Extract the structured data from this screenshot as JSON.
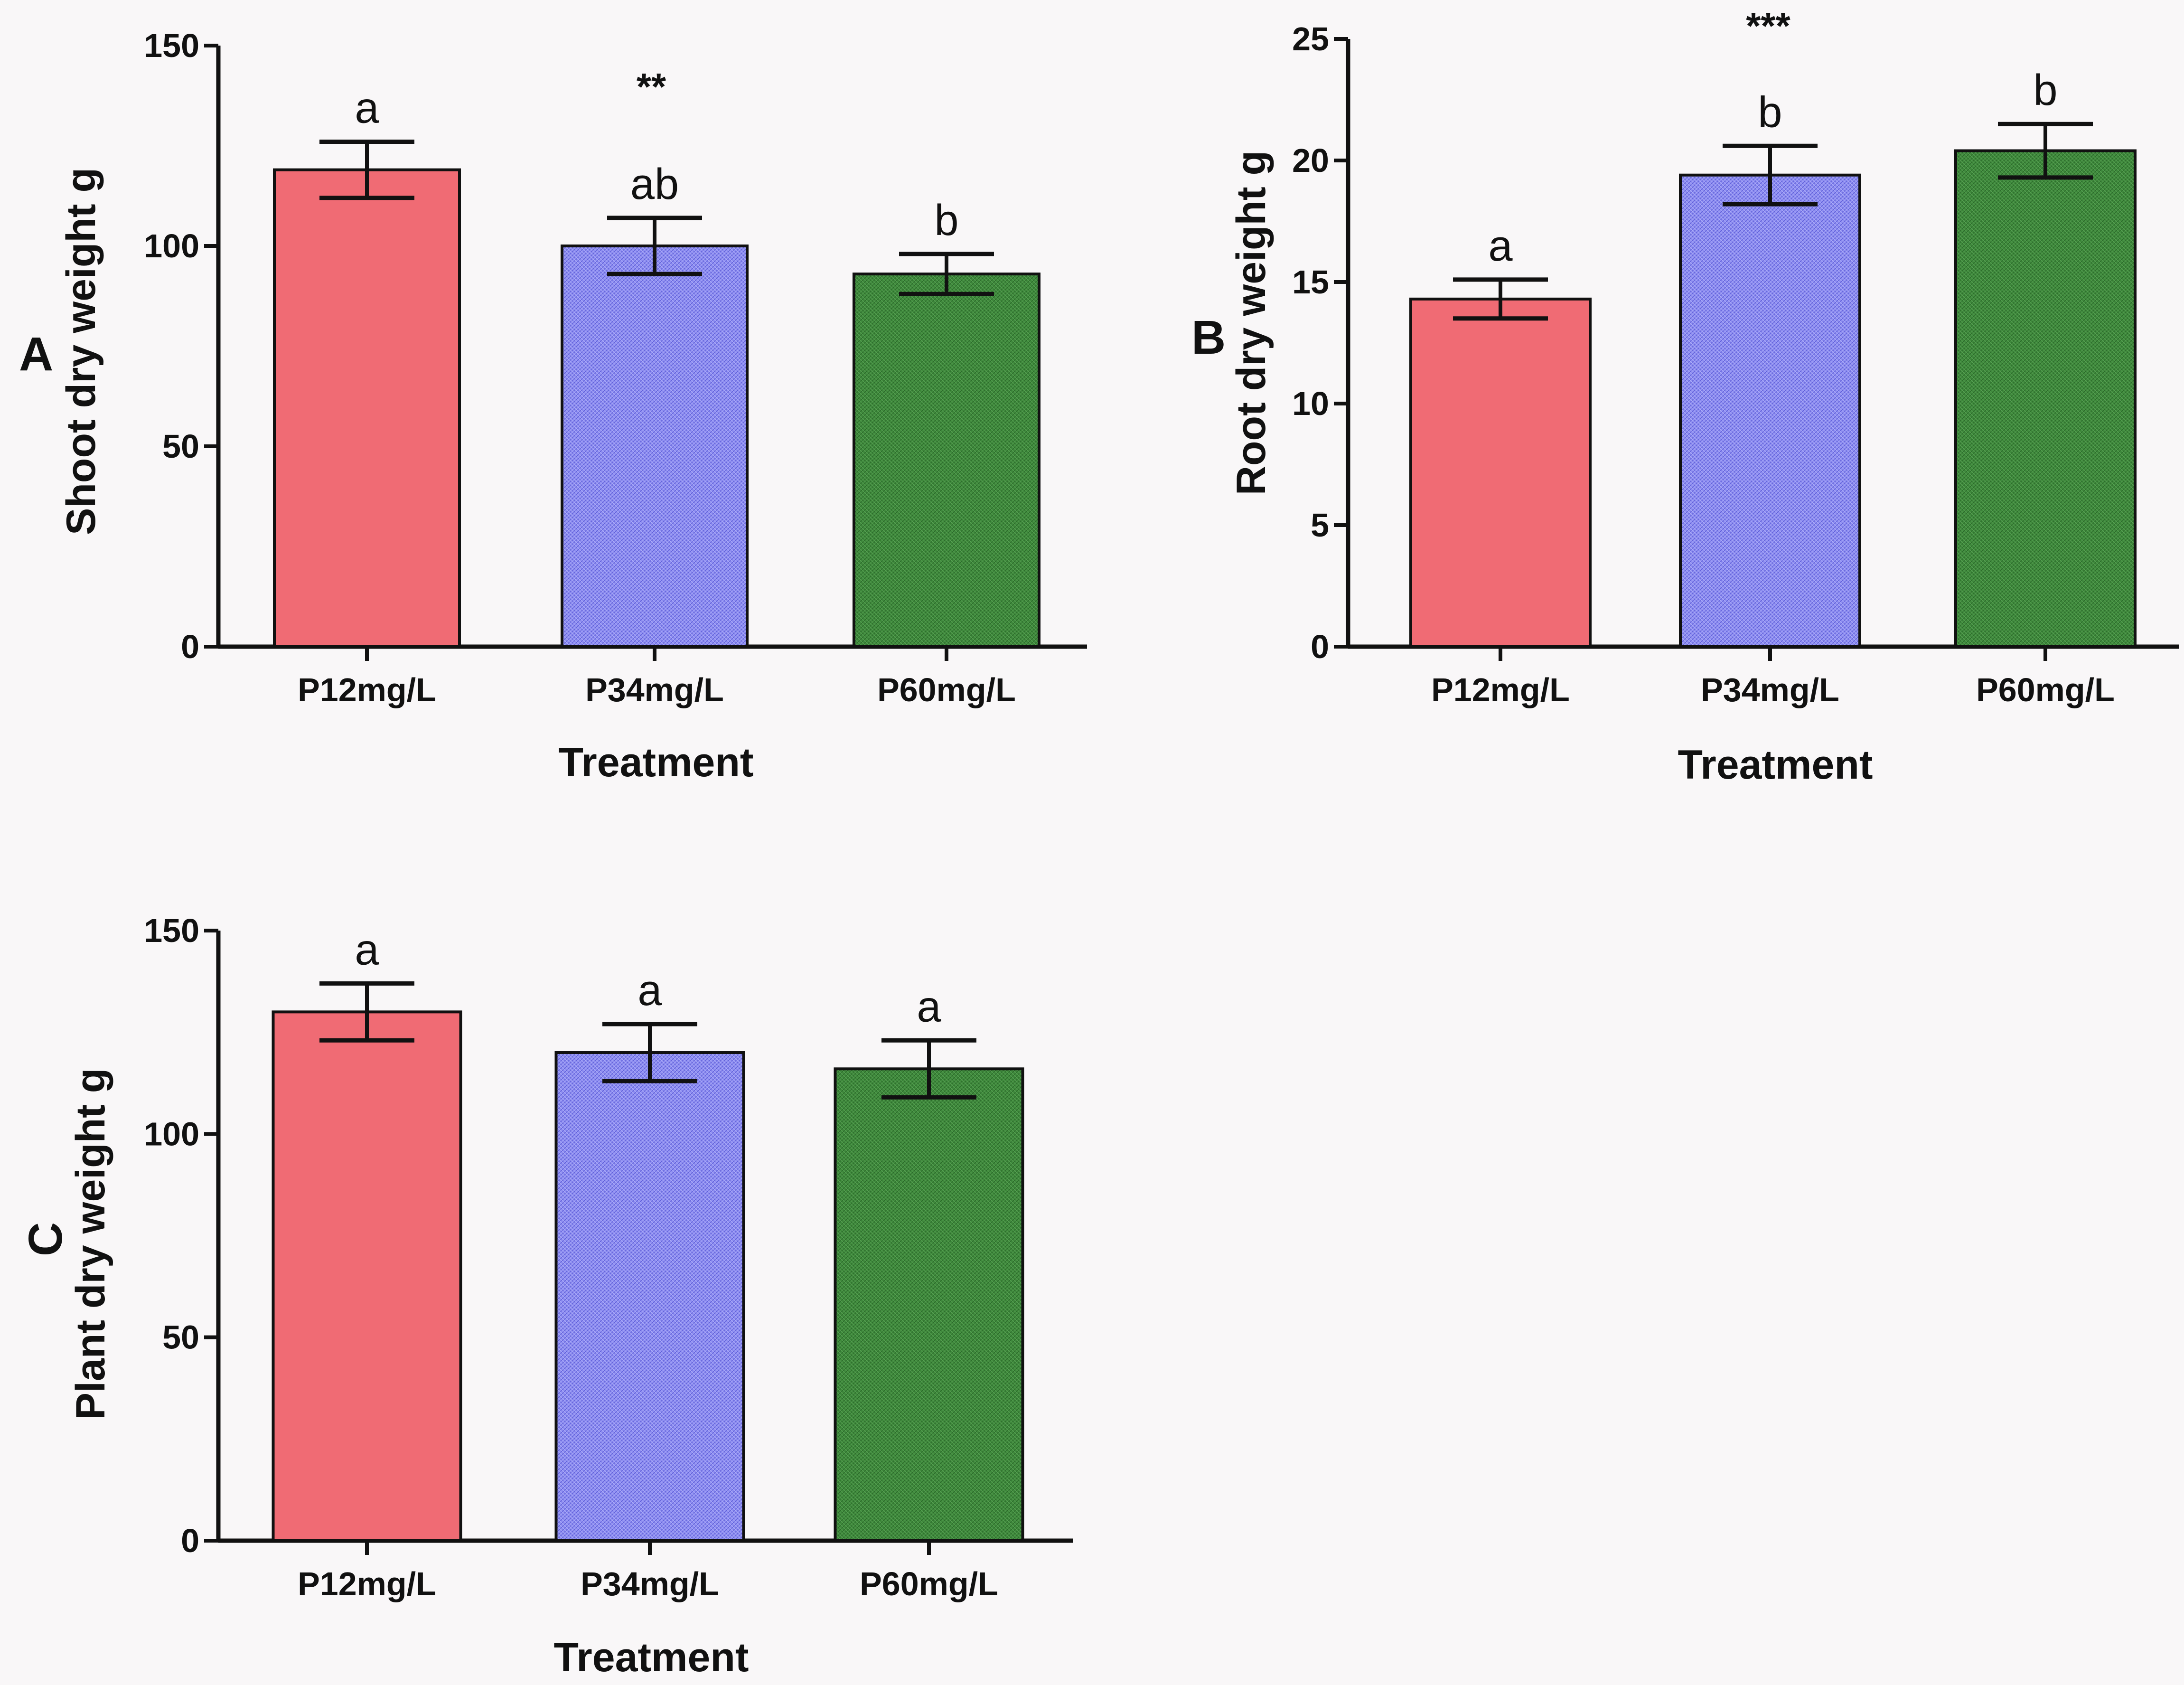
{
  "colors": {
    "p12": "#f06b74",
    "p34": "#8d8df0",
    "p60": "#3f8a3c",
    "axis": "#111111"
  },
  "chart_data": [
    {
      "type": "bar",
      "panel_label": "A",
      "categories": [
        "P12mg/L",
        "P34mg/L",
        "P60mg/L"
      ],
      "values": [
        119,
        100,
        93
      ],
      "errors": [
        7,
        7,
        5
      ],
      "significance_letters": [
        "a",
        "ab",
        "b"
      ],
      "significance_stars": "**",
      "xlabel": "Treatment",
      "ylabel": "Shoot dry weight g",
      "ylim": [
        0,
        150
      ],
      "yticks": [
        0,
        50,
        100,
        150
      ]
    },
    {
      "type": "bar",
      "panel_label": "B",
      "categories": [
        "P12mg/L",
        "P34mg/L",
        "P60mg/L"
      ],
      "values": [
        14.3,
        19.4,
        20.4
      ],
      "errors": [
        0.8,
        1.2,
        1.1
      ],
      "significance_letters": [
        "a",
        "b",
        "b"
      ],
      "significance_stars": "***",
      "xlabel": "Treatment",
      "ylabel": "Root dry weight g",
      "ylim": [
        0,
        25
      ],
      "yticks": [
        0,
        5,
        10,
        15,
        20,
        25
      ]
    },
    {
      "type": "bar",
      "panel_label": "C",
      "categories": [
        "P12mg/L",
        "P34mg/L",
        "P60mg/L"
      ],
      "values": [
        130,
        120,
        116
      ],
      "errors": [
        7,
        7,
        7
      ],
      "significance_letters": [
        "a",
        "a",
        "a"
      ],
      "significance_stars": "",
      "xlabel": "Treatment",
      "ylabel": "Plant dry weight g",
      "ylim": [
        0,
        150
      ],
      "yticks": [
        0,
        50,
        100,
        150
      ]
    }
  ]
}
